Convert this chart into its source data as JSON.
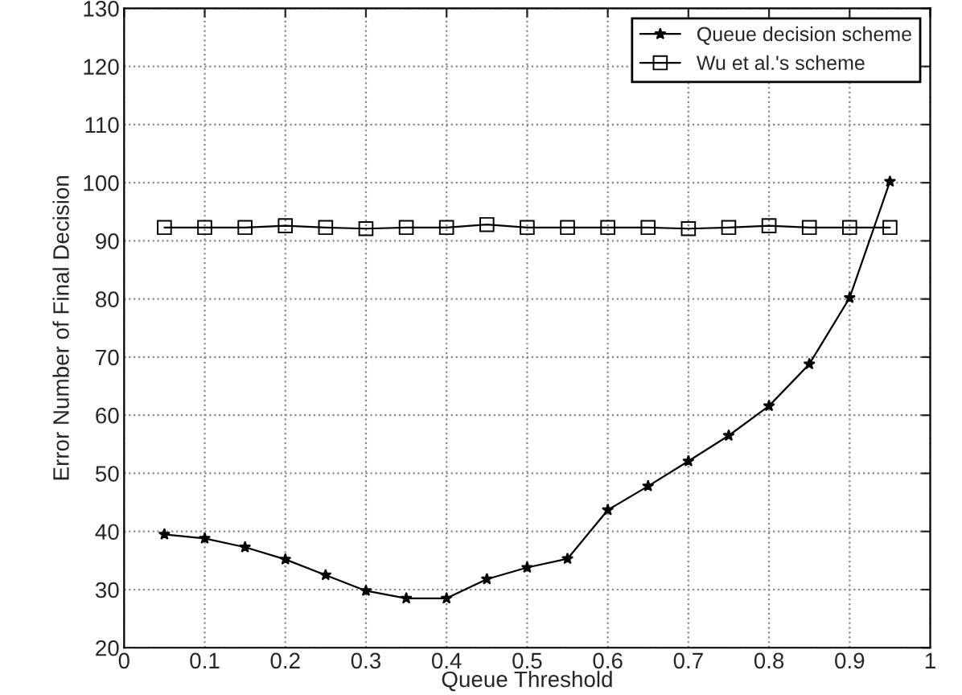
{
  "chart_data": {
    "type": "line",
    "xlabel": "Queue Threshold",
    "ylabel": "Error Number of Final Decision",
    "x": [
      0.05,
      0.1,
      0.15,
      0.2,
      0.25,
      0.3,
      0.35,
      0.4,
      0.45,
      0.5,
      0.55,
      0.6,
      0.65,
      0.7,
      0.75,
      0.8,
      0.85,
      0.9,
      0.95
    ],
    "series": [
      {
        "name": "Queue decision scheme",
        "color": "#000000",
        "marker": "star",
        "values": [
          39.5,
          38.8,
          37.3,
          35.2,
          32.5,
          29.8,
          28.5,
          28.5,
          31.8,
          33.8,
          35.3,
          43.7,
          47.8,
          52.1,
          56.5,
          61.6,
          68.8,
          80.2,
          100.2
        ]
      },
      {
        "name": "Wu et al.'s scheme",
        "color": "#000000",
        "marker": "square",
        "values": [
          92.3,
          92.3,
          92.3,
          92.6,
          92.3,
          92.1,
          92.3,
          92.3,
          92.8,
          92.3,
          92.3,
          92.3,
          92.3,
          92.1,
          92.3,
          92.6,
          92.3,
          92.3,
          92.3
        ]
      }
    ],
    "xlim": [
      0,
      1
    ],
    "xticks": [
      0,
      0.1,
      0.2,
      0.3,
      0.4,
      0.5,
      0.6,
      0.7,
      0.8,
      0.9,
      1
    ],
    "ylim": [
      20,
      130
    ],
    "yticks": [
      20,
      30,
      40,
      50,
      60,
      70,
      80,
      90,
      100,
      110,
      120,
      130
    ],
    "grid": true,
    "legend": "top right",
    "line_style": "solid"
  }
}
